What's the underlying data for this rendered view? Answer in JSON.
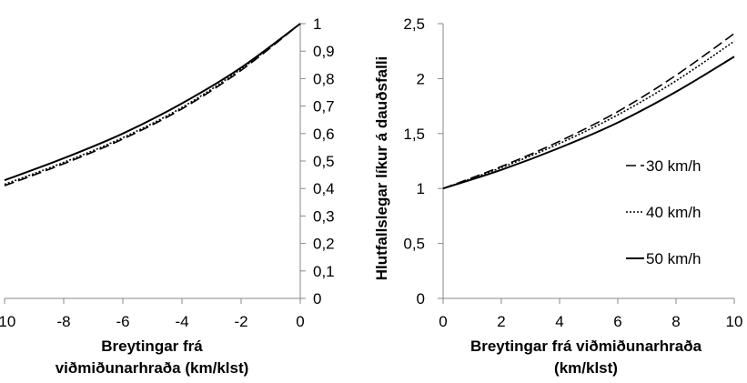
{
  "chart_data": [
    {
      "type": "line",
      "xlabel": [
        "Breytingar frá",
        "viðmiðunarhraða (km/klst)"
      ],
      "ylabel": "",
      "xlim": [
        -10,
        0
      ],
      "ylim": [
        0,
        1
      ],
      "x_ticks": [
        -10,
        -8,
        -6,
        -4,
        -2,
        0
      ],
      "y_ticks": [
        0,
        0.1,
        0.2,
        0.3,
        0.4,
        0.5,
        0.6,
        0.7,
        0.8,
        0.9,
        1
      ],
      "decimal_separator": ",",
      "y_axis_side": "right",
      "series": [
        {
          "name": "30 km/h",
          "dash": "dashed",
          "x": [
            -10,
            -8,
            -6,
            -4,
            -2,
            0
          ],
          "values": [
            0.41,
            0.49,
            0.58,
            0.69,
            0.83,
            1.0
          ]
        },
        {
          "name": "40 km/h",
          "dash": "dotted",
          "x": [
            -10,
            -8,
            -6,
            -4,
            -2,
            0
          ],
          "values": [
            0.415,
            0.495,
            0.585,
            0.695,
            0.835,
            1.0
          ]
        },
        {
          "name": "50 km/h",
          "dash": "solid",
          "x": [
            -10,
            -8,
            -6,
            -4,
            -2,
            0
          ],
          "values": [
            0.43,
            0.51,
            0.6,
            0.71,
            0.84,
            1.0
          ]
        }
      ]
    },
    {
      "type": "line",
      "xlabel": [
        "Breytingar frá viðmiðunarhraða",
        "(km/klst)"
      ],
      "ylabel": "Hlutfallslegar líkur á dauðsfalli",
      "xlim": [
        0,
        10
      ],
      "ylim": [
        0,
        2.5
      ],
      "x_ticks": [
        0,
        2,
        4,
        6,
        8,
        10
      ],
      "y_ticks": [
        0,
        0.5,
        1,
        1.5,
        2,
        2.5
      ],
      "decimal_separator": ",",
      "y_axis_side": "left",
      "legend": "right",
      "series": [
        {
          "name": "30 km/h",
          "dash": "dashed",
          "x": [
            0,
            2,
            4,
            6,
            8,
            10
          ],
          "values": [
            1.0,
            1.2,
            1.43,
            1.7,
            2.03,
            2.41
          ]
        },
        {
          "name": "40 km/h",
          "dash": "dotted",
          "x": [
            0,
            2,
            4,
            6,
            8,
            10
          ],
          "values": [
            1.0,
            1.19,
            1.41,
            1.67,
            1.98,
            2.34
          ]
        },
        {
          "name": "50 km/h",
          "dash": "solid",
          "x": [
            0,
            2,
            4,
            6,
            8,
            10
          ],
          "values": [
            1.0,
            1.17,
            1.37,
            1.6,
            1.88,
            2.2
          ]
        }
      ]
    }
  ]
}
